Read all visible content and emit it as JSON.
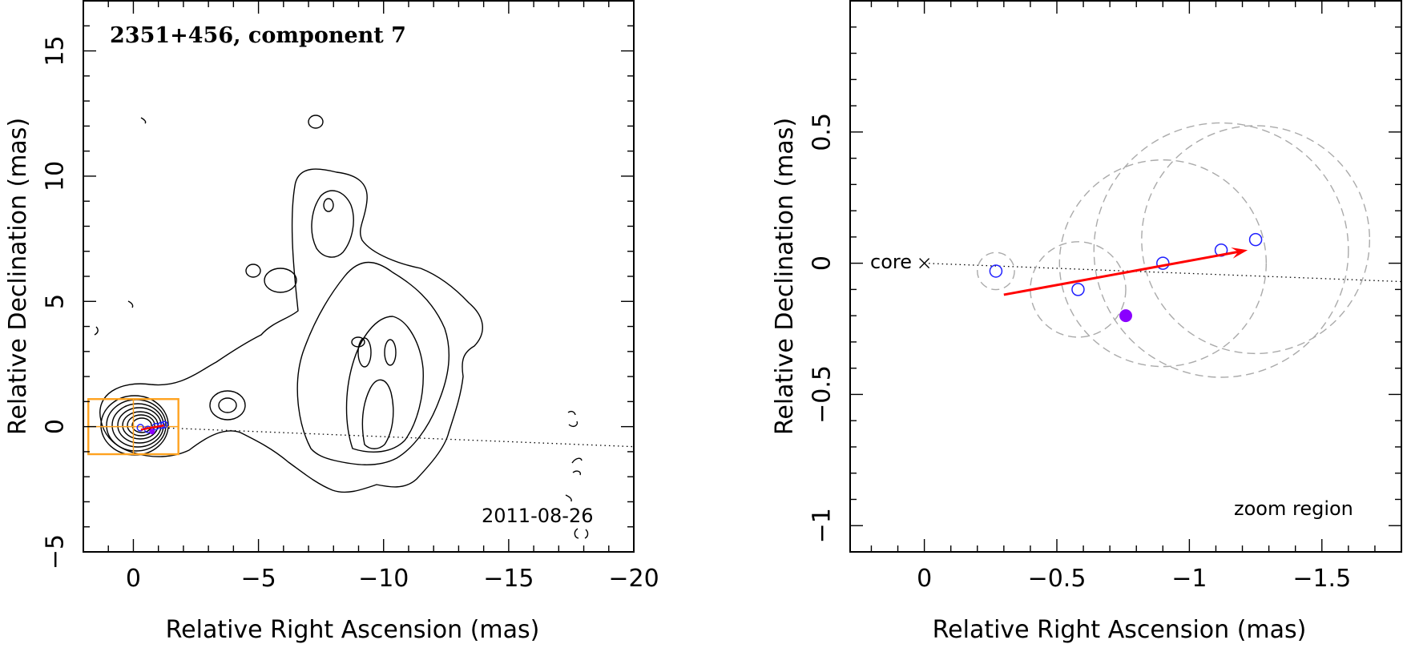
{
  "chart_data": [
    {
      "type": "scatter",
      "panel": "left",
      "title": "2351+456, component 7",
      "date_label": "2011-08-26",
      "xlabel": "Relative Right Ascension (mas)",
      "ylabel": "Relative Declination (mas)",
      "xlim": [
        2,
        -20
      ],
      "ylim": [
        -5,
        17
      ],
      "xticks": [
        0,
        -5,
        -10,
        -15,
        -20
      ],
      "xtick_labels": [
        "0",
        "−5",
        "−10",
        "−15",
        "−20"
      ],
      "yticks": [
        -5,
        0,
        5,
        10,
        15
      ],
      "ytick_labels": [
        "−5",
        "0",
        "5",
        "10",
        "15"
      ],
      "ridge_line": {
        "x": [
          0,
          -20
        ],
        "y": [
          0,
          -0.8
        ]
      },
      "core": {
        "x": 0,
        "y": 0
      },
      "zoom_box": {
        "x": [
          -1.8,
          1.8
        ],
        "y": [
          -1.1,
          1.1
        ]
      },
      "components": [
        {
          "x": -0.28,
          "y": -0.04
        },
        {
          "x": -0.58,
          "y": -0.11
        },
        {
          "x": -0.89,
          "y": 0.0
        },
        {
          "x": -1.12,
          "y": 0.05
        },
        {
          "x": -1.24,
          "y": 0.08
        }
      ],
      "reference_point": {
        "x": -0.75,
        "y": -0.2
      },
      "motion_vector": {
        "x0": -0.3,
        "y0": -0.12,
        "x1": -1.22,
        "y1": 0.05
      },
      "colors": {
        "components": "#1f1fff",
        "vector": "#ff0000",
        "reference": "#8a00ff",
        "zoom_box": "#ffa21f"
      }
    },
    {
      "type": "scatter",
      "panel": "right",
      "title": "",
      "corner_label": "zoom region",
      "core_label": "core",
      "xlabel": "Relative Right Ascension (mas)",
      "ylabel": "Relative Declination (mas)",
      "xlim": [
        0.28,
        -1.8
      ],
      "ylim": [
        -1.1,
        1.0
      ],
      "xticks": [
        0,
        -0.5,
        -1,
        -1.5
      ],
      "xtick_labels": [
        "0",
        "−0.5",
        "−1",
        "−1.5"
      ],
      "yticks": [
        -1,
        -0.5,
        0,
        0.5
      ],
      "ytick_labels": [
        "−1",
        "−0.5",
        "0",
        "0.5"
      ],
      "ridge_line": {
        "x": [
          0,
          -1.8
        ],
        "y": [
          0,
          -0.07
        ]
      },
      "components": [
        {
          "x": -0.27,
          "y": -0.03,
          "r": 0.07
        },
        {
          "x": -0.58,
          "y": -0.1,
          "r": 0.18
        },
        {
          "x": -0.9,
          "y": 0.0,
          "r": 0.39
        },
        {
          "x": -1.12,
          "y": 0.05,
          "r": 0.48
        },
        {
          "x": -1.25,
          "y": 0.09,
          "r": 0.43
        }
      ],
      "reference_point": {
        "x": -0.76,
        "y": -0.2
      },
      "motion_vector": {
        "x0": -0.3,
        "y0": -0.12,
        "x1": -1.22,
        "y1": 0.05
      },
      "colors": {
        "components": "#1f1fff",
        "vector": "#ff0000",
        "reference": "#8a00ff",
        "uncertainty": "#aaaaaa"
      }
    }
  ]
}
